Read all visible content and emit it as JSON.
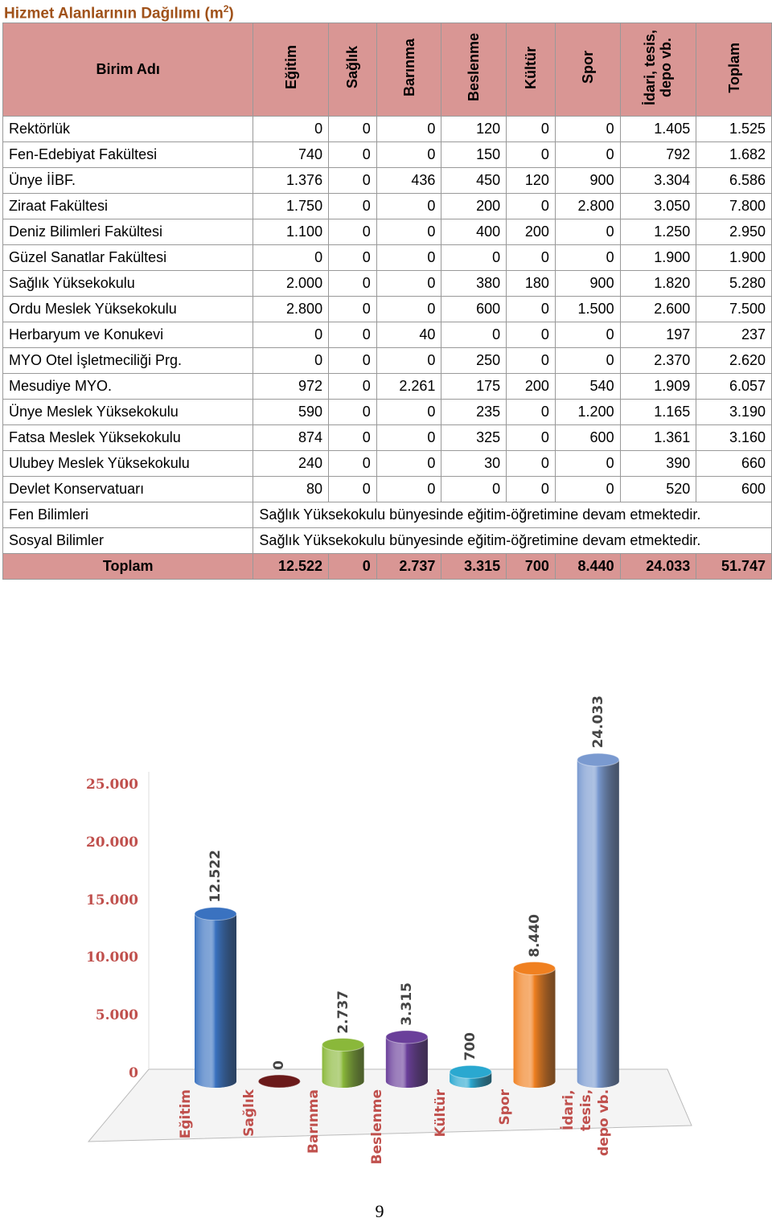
{
  "title": "Hizmet Alanlarının Dağılımı (m",
  "title_sup": "2",
  "title_end": ")",
  "table": {
    "headers": [
      "Birim Adı",
      "Eğitim",
      "Sağlık",
      "Barınma",
      "Beslenme",
      "Kültür",
      "Spor",
      "İdari, tesis, depo vb.",
      "Toplam"
    ],
    "rows": [
      [
        "Rektörlük",
        "0",
        "0",
        "0",
        "120",
        "0",
        "0",
        "1.405",
        "1.525"
      ],
      [
        "Fen-Edebiyat Fakültesi",
        "740",
        "0",
        "0",
        "150",
        "0",
        "0",
        "792",
        "1.682"
      ],
      [
        "Ünye İİBF.",
        "1.376",
        "0",
        "436",
        "450",
        "120",
        "900",
        "3.304",
        "6.586"
      ],
      [
        "Ziraat Fakültesi",
        "1.750",
        "0",
        "0",
        "200",
        "0",
        "2.800",
        "3.050",
        "7.800"
      ],
      [
        "Deniz Bilimleri Fakültesi",
        "1.100",
        "0",
        "0",
        "400",
        "200",
        "0",
        "1.250",
        "2.950"
      ],
      [
        "Güzel Sanatlar Fakültesi",
        "0",
        "0",
        "0",
        "0",
        "0",
        "0",
        "1.900",
        "1.900"
      ],
      [
        "Sağlık Yüksekokulu",
        "2.000",
        "0",
        "0",
        "380",
        "180",
        "900",
        "1.820",
        "5.280"
      ],
      [
        "Ordu Meslek Yüksekokulu",
        "2.800",
        "0",
        "0",
        "600",
        "0",
        "1.500",
        "2.600",
        "7.500"
      ],
      [
        "Herbaryum ve Konukevi",
        "0",
        "0",
        "40",
        "0",
        "0",
        "0",
        "197",
        "237"
      ],
      [
        "MYO Otel İşletmeciliği Prg.",
        "0",
        "0",
        "0",
        "250",
        "0",
        "0",
        "2.370",
        "2.620"
      ],
      [
        "Mesudiye MYO.",
        "972",
        "0",
        "2.261",
        "175",
        "200",
        "540",
        "1.909",
        "6.057"
      ],
      [
        "Ünye Meslek Yüksekokulu",
        "590",
        "0",
        "0",
        "235",
        "0",
        "1.200",
        "1.165",
        "3.190"
      ],
      [
        "Fatsa Meslek Yüksekokulu",
        "874",
        "0",
        "0",
        "325",
        "0",
        "600",
        "1.361",
        "3.160"
      ],
      [
        "Ulubey Meslek Yüksekokulu",
        "240",
        "0",
        "0",
        "30",
        "0",
        "0",
        "390",
        "660"
      ],
      [
        "Devlet Konservatuarı",
        "80",
        "0",
        "0",
        "0",
        "0",
        "0",
        "520",
        "600"
      ],
      [
        "Fen Bilimleri",
        "Sağlık Yüksekokulu bünyesinde eğitim-öğretimine devam etmektedir."
      ],
      [
        "Sosyal Bilimler",
        "Sağlık Yüksekokulu bünyesinde eğitim-öğretimine devam etmektedir."
      ]
    ],
    "total": [
      "Toplam",
      "12.522",
      "0",
      "2.737",
      "3.315",
      "700",
      "8.440",
      "24.033",
      "51.747"
    ]
  },
  "chart_data": {
    "type": "bar",
    "categories": [
      "Eğitim",
      "Sağlık",
      "Barınma",
      "Beslenme",
      "Kültür",
      "Spor",
      "İdari, tesis, depo vb."
    ],
    "values": [
      12522,
      0,
      2737,
      3315,
      700,
      8440,
      24033
    ],
    "value_labels": [
      "12.522",
      "0",
      "2.737",
      "3.315",
      "700",
      "8.440",
      "24.033"
    ],
    "colors": [
      "#3a72c0",
      "#6b1a1a",
      "#8ab83a",
      "#6a3f9a",
      "#2aa8d0",
      "#f08020",
      "#7a9ad0"
    ],
    "ylim": [
      0,
      25000
    ],
    "yticks": [
      0,
      {
        "value": 5000,
        "label": "5.000"
      },
      {
        "value": 10000,
        "label": "10.000"
      },
      {
        "value": 15000,
        "label": "15.000"
      },
      {
        "value": 20000,
        "label": "20.000"
      },
      {
        "value": 25000,
        "label": "25.000"
      }
    ]
  },
  "page_number": "9"
}
